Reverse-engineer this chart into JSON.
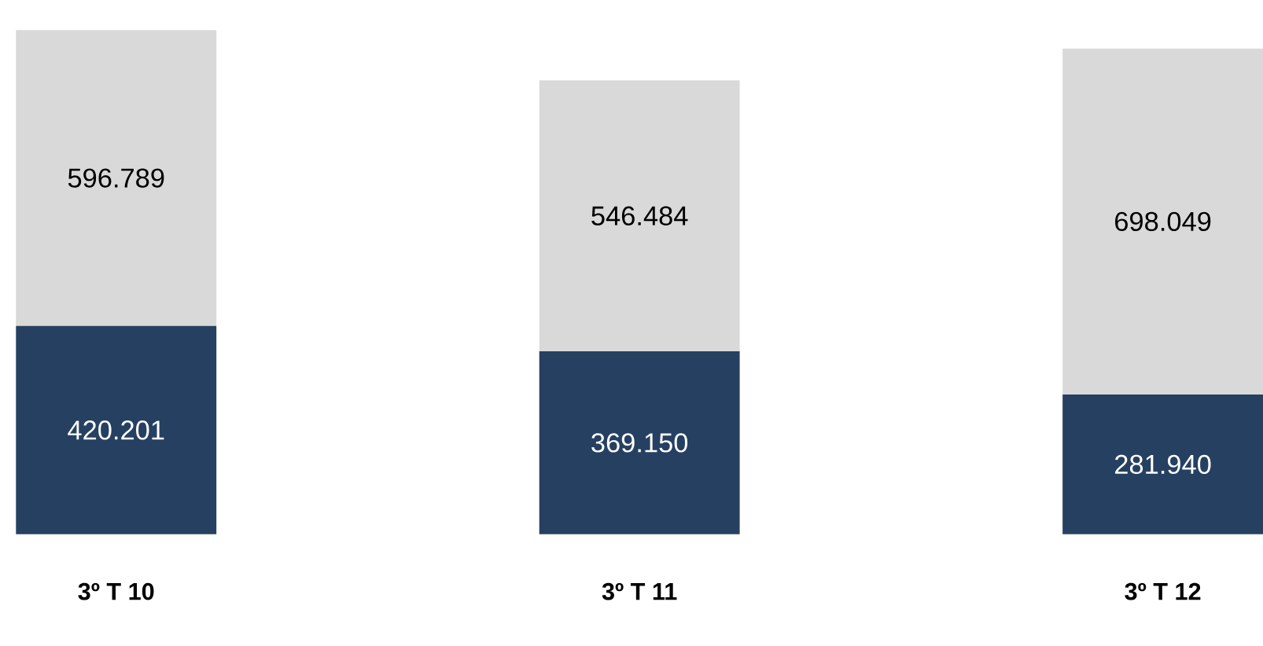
{
  "chart_data": {
    "type": "bar",
    "stacked": true,
    "categories": [
      "3º T 10",
      "3º T 11",
      "3º T 12"
    ],
    "series": [
      {
        "color": "#264061",
        "values": [
          420201,
          369150,
          281940
        ],
        "value_labels": [
          "420.201",
          "369.150",
          "281.940"
        ]
      },
      {
        "color": "#d9d9d9",
        "values": [
          596789,
          546484,
          698049
        ],
        "value_labels": [
          "596.789",
          "546.484",
          "698.049"
        ]
      }
    ]
  }
}
